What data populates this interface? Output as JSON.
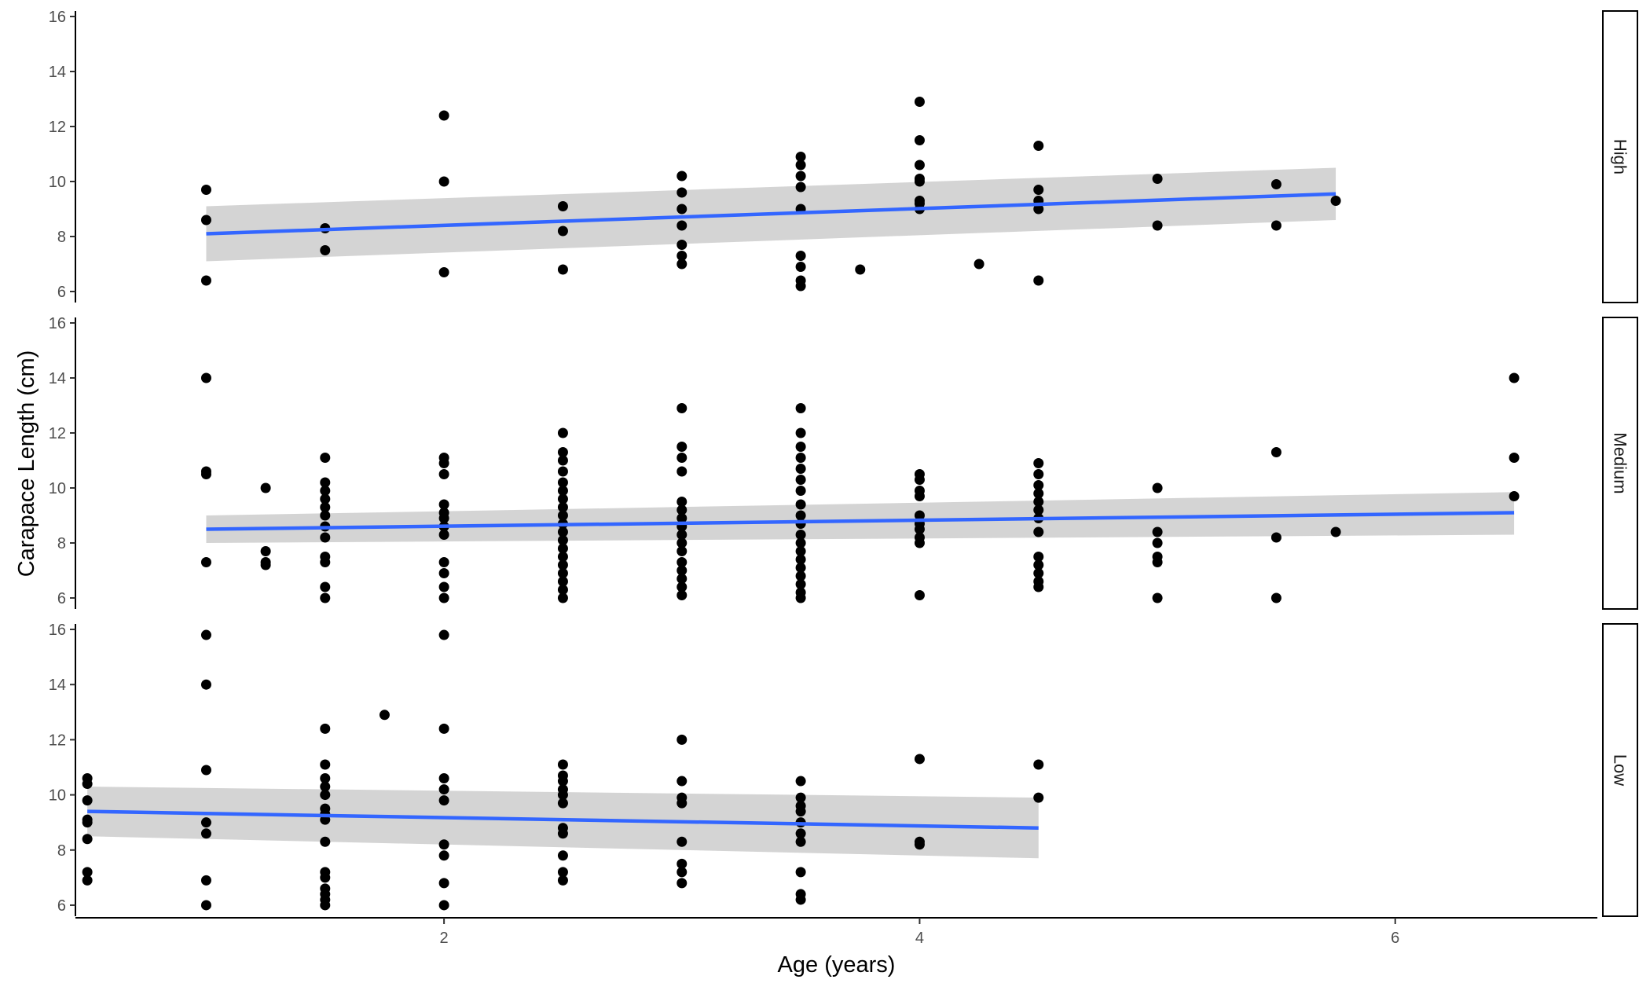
{
  "chart_data": {
    "type": "scatter",
    "xlabel": "Age (years)",
    "ylabel": "Carapace Length (cm)",
    "xlim": [
      0.45,
      6.85
    ],
    "x_ticks": [
      2,
      4,
      6
    ],
    "y_ticks": [
      6,
      8,
      10,
      12,
      14,
      16
    ],
    "grid": false,
    "trend": "linear fit (blue) with grey confidence band",
    "colors": {
      "points": "#000000",
      "fit_line": "#3366ff",
      "ci_band": "#cccccc"
    },
    "panels": [
      {
        "strip": "High",
        "ylim": [
          5.6,
          16.2
        ],
        "fit": {
          "x": [
            1.0,
            5.75
          ],
          "y": [
            8.1,
            9.55
          ]
        },
        "ci": {
          "lower": [
            7.1,
            8.6
          ],
          "upper": [
            9.1,
            10.5
          ]
        },
        "points": [
          [
            1.0,
            9.7
          ],
          [
            1.0,
            8.6
          ],
          [
            1.0,
            6.4
          ],
          [
            1.5,
            8.3
          ],
          [
            1.5,
            7.5
          ],
          [
            2.0,
            12.4
          ],
          [
            2.0,
            10.0
          ],
          [
            2.0,
            6.7
          ],
          [
            2.5,
            9.1
          ],
          [
            2.5,
            8.2
          ],
          [
            2.5,
            6.8
          ],
          [
            3.0,
            10.2
          ],
          [
            3.0,
            9.6
          ],
          [
            3.0,
            9.0
          ],
          [
            3.0,
            8.4
          ],
          [
            3.0,
            7.7
          ],
          [
            3.0,
            7.3
          ],
          [
            3.0,
            7.0
          ],
          [
            3.5,
            10.9
          ],
          [
            3.5,
            10.6
          ],
          [
            3.5,
            10.2
          ],
          [
            3.5,
            9.8
          ],
          [
            3.5,
            9.0
          ],
          [
            3.5,
            7.3
          ],
          [
            3.5,
            6.9
          ],
          [
            3.5,
            6.4
          ],
          [
            3.5,
            6.2
          ],
          [
            3.75,
            6.8
          ],
          [
            4.0,
            12.9
          ],
          [
            4.0,
            11.5
          ],
          [
            4.0,
            10.6
          ],
          [
            4.0,
            10.1
          ],
          [
            4.0,
            10.0
          ],
          [
            4.0,
            9.3
          ],
          [
            4.0,
            9.2
          ],
          [
            4.0,
            9.0
          ],
          [
            4.25,
            7.0
          ],
          [
            4.5,
            11.3
          ],
          [
            4.5,
            9.7
          ],
          [
            4.5,
            9.3
          ],
          [
            4.5,
            9.0
          ],
          [
            4.5,
            6.4
          ],
          [
            5.0,
            10.1
          ],
          [
            5.0,
            8.4
          ],
          [
            5.5,
            9.9
          ],
          [
            5.5,
            8.4
          ],
          [
            5.75,
            9.3
          ]
        ]
      },
      {
        "strip": "Medium",
        "ylim": [
          5.6,
          16.2
        ],
        "fit": {
          "x": [
            1.0,
            6.5
          ],
          "y": [
            8.5,
            9.1
          ]
        },
        "ci": {
          "lower": [
            8.0,
            8.3
          ],
          "upper": [
            9.0,
            9.85
          ]
        },
        "points": [
          [
            1.0,
            14.0
          ],
          [
            1.0,
            10.6
          ],
          [
            1.0,
            10.5
          ],
          [
            1.0,
            7.3
          ],
          [
            1.25,
            10.0
          ],
          [
            1.25,
            7.7
          ],
          [
            1.25,
            7.3
          ],
          [
            1.25,
            7.2
          ],
          [
            1.5,
            11.1
          ],
          [
            1.5,
            10.2
          ],
          [
            1.5,
            9.9
          ],
          [
            1.5,
            9.6
          ],
          [
            1.5,
            9.3
          ],
          [
            1.5,
            9.0
          ],
          [
            1.5,
            8.6
          ],
          [
            1.5,
            8.2
          ],
          [
            1.5,
            7.5
          ],
          [
            1.5,
            7.3
          ],
          [
            1.5,
            6.4
          ],
          [
            1.5,
            6.0
          ],
          [
            2.0,
            11.1
          ],
          [
            2.0,
            10.9
          ],
          [
            2.0,
            10.5
          ],
          [
            2.0,
            9.4
          ],
          [
            2.0,
            9.1
          ],
          [
            2.0,
            8.9
          ],
          [
            2.0,
            8.6
          ],
          [
            2.0,
            8.3
          ],
          [
            2.0,
            7.3
          ],
          [
            2.0,
            6.9
          ],
          [
            2.0,
            6.4
          ],
          [
            2.0,
            6.0
          ],
          [
            2.5,
            12.0
          ],
          [
            2.5,
            11.3
          ],
          [
            2.5,
            11.0
          ],
          [
            2.5,
            10.6
          ],
          [
            2.5,
            10.2
          ],
          [
            2.5,
            9.9
          ],
          [
            2.5,
            9.6
          ],
          [
            2.5,
            9.3
          ],
          [
            2.5,
            9.0
          ],
          [
            2.5,
            8.7
          ],
          [
            2.5,
            8.4
          ],
          [
            2.5,
            8.1
          ],
          [
            2.5,
            7.8
          ],
          [
            2.5,
            7.5
          ],
          [
            2.5,
            7.2
          ],
          [
            2.5,
            6.9
          ],
          [
            2.5,
            6.6
          ],
          [
            2.5,
            6.3
          ],
          [
            2.5,
            6.0
          ],
          [
            3.0,
            12.9
          ],
          [
            3.0,
            11.5
          ],
          [
            3.0,
            11.1
          ],
          [
            3.0,
            10.6
          ],
          [
            3.0,
            9.5
          ],
          [
            3.0,
            9.2
          ],
          [
            3.0,
            8.9
          ],
          [
            3.0,
            8.6
          ],
          [
            3.0,
            8.3
          ],
          [
            3.0,
            8.0
          ],
          [
            3.0,
            7.7
          ],
          [
            3.0,
            7.3
          ],
          [
            3.0,
            7.0
          ],
          [
            3.0,
            6.7
          ],
          [
            3.0,
            6.4
          ],
          [
            3.0,
            6.1
          ],
          [
            3.5,
            12.9
          ],
          [
            3.5,
            12.0
          ],
          [
            3.5,
            11.5
          ],
          [
            3.5,
            11.1
          ],
          [
            3.5,
            10.7
          ],
          [
            3.5,
            10.3
          ],
          [
            3.5,
            9.9
          ],
          [
            3.5,
            9.4
          ],
          [
            3.5,
            9.0
          ],
          [
            3.5,
            8.7
          ],
          [
            3.5,
            8.3
          ],
          [
            3.5,
            8.0
          ],
          [
            3.5,
            7.7
          ],
          [
            3.5,
            7.4
          ],
          [
            3.5,
            7.1
          ],
          [
            3.5,
            6.8
          ],
          [
            3.5,
            6.5
          ],
          [
            3.5,
            6.2
          ],
          [
            3.5,
            6.0
          ],
          [
            4.0,
            10.5
          ],
          [
            4.0,
            10.3
          ],
          [
            4.0,
            9.9
          ],
          [
            4.0,
            9.7
          ],
          [
            4.0,
            9.0
          ],
          [
            4.0,
            8.7
          ],
          [
            4.0,
            8.5
          ],
          [
            4.0,
            8.2
          ],
          [
            4.0,
            8.0
          ],
          [
            4.0,
            6.1
          ],
          [
            4.5,
            10.9
          ],
          [
            4.5,
            10.5
          ],
          [
            4.5,
            10.1
          ],
          [
            4.5,
            9.8
          ],
          [
            4.5,
            9.5
          ],
          [
            4.5,
            9.2
          ],
          [
            4.5,
            8.9
          ],
          [
            4.5,
            8.4
          ],
          [
            4.5,
            7.5
          ],
          [
            4.5,
            7.2
          ],
          [
            4.5,
            6.9
          ],
          [
            4.5,
            6.6
          ],
          [
            4.5,
            6.4
          ],
          [
            5.0,
            10.0
          ],
          [
            5.0,
            8.4
          ],
          [
            5.0,
            8.0
          ],
          [
            5.0,
            7.5
          ],
          [
            5.0,
            7.3
          ],
          [
            5.0,
            6.0
          ],
          [
            5.5,
            11.3
          ],
          [
            5.5,
            8.2
          ],
          [
            5.5,
            6.0
          ],
          [
            5.75,
            8.4
          ],
          [
            6.5,
            14.0
          ],
          [
            6.5,
            11.1
          ],
          [
            6.5,
            9.7
          ]
        ]
      },
      {
        "strip": "Low",
        "ylim": [
          5.6,
          16.2
        ],
        "fit": {
          "x": [
            0.5,
            4.5
          ],
          "y": [
            9.4,
            8.8
          ]
        },
        "ci": {
          "lower": [
            8.5,
            7.7
          ],
          "upper": [
            10.3,
            9.9
          ]
        },
        "points": [
          [
            0.5,
            10.6
          ],
          [
            0.5,
            10.4
          ],
          [
            0.5,
            9.8
          ],
          [
            0.5,
            9.1
          ],
          [
            0.5,
            9.0
          ],
          [
            0.5,
            8.4
          ],
          [
            0.5,
            7.2
          ],
          [
            0.5,
            6.9
          ],
          [
            1.0,
            15.8
          ],
          [
            1.0,
            14.0
          ],
          [
            1.0,
            10.9
          ],
          [
            1.0,
            9.0
          ],
          [
            1.0,
            8.6
          ],
          [
            1.0,
            6.9
          ],
          [
            1.0,
            6.0
          ],
          [
            1.5,
            12.4
          ],
          [
            1.5,
            11.1
          ],
          [
            1.5,
            10.6
          ],
          [
            1.5,
            10.3
          ],
          [
            1.5,
            10.0
          ],
          [
            1.5,
            9.5
          ],
          [
            1.5,
            9.3
          ],
          [
            1.5,
            9.1
          ],
          [
            1.5,
            8.3
          ],
          [
            1.5,
            7.2
          ],
          [
            1.5,
            7.0
          ],
          [
            1.5,
            6.6
          ],
          [
            1.5,
            6.4
          ],
          [
            1.5,
            6.2
          ],
          [
            1.5,
            6.0
          ],
          [
            1.75,
            12.9
          ],
          [
            2.0,
            15.8
          ],
          [
            2.0,
            12.4
          ],
          [
            2.0,
            10.6
          ],
          [
            2.0,
            10.2
          ],
          [
            2.0,
            9.8
          ],
          [
            2.0,
            8.2
          ],
          [
            2.0,
            7.8
          ],
          [
            2.0,
            6.8
          ],
          [
            2.0,
            6.0
          ],
          [
            2.5,
            11.1
          ],
          [
            2.5,
            10.7
          ],
          [
            2.5,
            10.5
          ],
          [
            2.5,
            10.2
          ],
          [
            2.5,
            10.0
          ],
          [
            2.5,
            9.7
          ],
          [
            2.5,
            8.8
          ],
          [
            2.5,
            8.6
          ],
          [
            2.5,
            7.8
          ],
          [
            2.5,
            7.2
          ],
          [
            2.5,
            6.9
          ],
          [
            3.0,
            12.0
          ],
          [
            3.0,
            10.5
          ],
          [
            3.0,
            9.9
          ],
          [
            3.0,
            9.7
          ],
          [
            3.0,
            8.3
          ],
          [
            3.0,
            7.5
          ],
          [
            3.0,
            7.2
          ],
          [
            3.0,
            6.8
          ],
          [
            3.5,
            10.5
          ],
          [
            3.5,
            9.9
          ],
          [
            3.5,
            9.6
          ],
          [
            3.5,
            9.4
          ],
          [
            3.5,
            9.0
          ],
          [
            3.5,
            8.6
          ],
          [
            3.5,
            8.3
          ],
          [
            3.5,
            7.2
          ],
          [
            3.5,
            6.4
          ],
          [
            3.5,
            6.2
          ],
          [
            4.0,
            11.3
          ],
          [
            4.0,
            8.3
          ],
          [
            4.0,
            8.2
          ],
          [
            4.5,
            11.1
          ],
          [
            4.5,
            9.9
          ]
        ]
      }
    ]
  }
}
